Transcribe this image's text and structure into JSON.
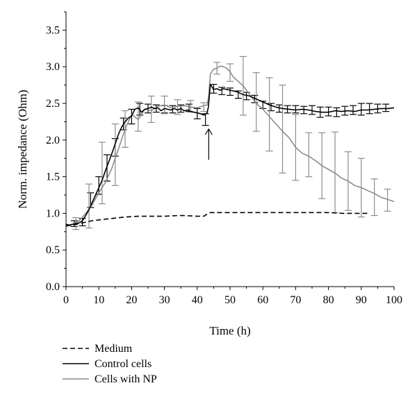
{
  "chart_data": {
    "type": "line",
    "xlabel": "Time (h)",
    "ylabel": "Norm. impedance (Ohm)",
    "xlim": [
      0,
      100
    ],
    "ylim": [
      0,
      3.75
    ],
    "x_ticks": [
      0,
      10,
      20,
      30,
      40,
      50,
      60,
      70,
      80,
      90,
      100
    ],
    "x_tick_labels": [
      "0",
      "10",
      "20",
      "30",
      "40",
      "50",
      "60",
      "70",
      "80",
      "90",
      "100"
    ],
    "y_ticks": [
      0,
      0.5,
      1.0,
      1.5,
      2.0,
      2.5,
      3.0,
      3.5
    ],
    "y_tick_labels": [
      "0.0",
      "0.5",
      "1.0",
      "1.5",
      "2.0",
      "2.5",
      "3.0",
      "3.5"
    ],
    "grid": false,
    "legend_position": "bottom-left",
    "annotation": {
      "type": "arrow",
      "x": 43.5,
      "y_from": 1.73,
      "y_to": 2.15
    },
    "series": [
      {
        "name": "Medium",
        "color": "#000000",
        "dash": "dashed",
        "x": [
          0,
          2,
          4,
          6,
          8,
          10,
          12,
          14,
          16,
          18,
          20,
          22,
          24,
          26,
          28,
          30,
          32,
          34,
          36,
          38,
          40,
          42,
          43,
          44,
          46,
          50,
          60,
          70,
          80,
          84,
          88,
          92
        ],
        "y": [
          0.83,
          0.84,
          0.86,
          0.88,
          0.9,
          0.91,
          0.92,
          0.93,
          0.94,
          0.95,
          0.955,
          0.96,
          0.96,
          0.96,
          0.96,
          0.96,
          0.965,
          0.97,
          0.97,
          0.965,
          0.96,
          0.96,
          0.99,
          1.01,
          1.01,
          1.01,
          1.01,
          1.01,
          1.01,
          1.0,
          1.0,
          1.0
        ]
      },
      {
        "name": "Control cells",
        "color": "#000000",
        "dash": "solid",
        "x": [
          0,
          1,
          2,
          3,
          4,
          5,
          6,
          7,
          8,
          9,
          10,
          11,
          12,
          13,
          14,
          15,
          16,
          17,
          18,
          19,
          20,
          21,
          22,
          23,
          24,
          25,
          26,
          27,
          28,
          29,
          30,
          31,
          32,
          33,
          34,
          35,
          36,
          37,
          38,
          39,
          40,
          41,
          42,
          43,
          43.4,
          44,
          45,
          46,
          47,
          48,
          50,
          52,
          54,
          56,
          58,
          60,
          62,
          64,
          66,
          68,
          70,
          72,
          74,
          76,
          78,
          80,
          82,
          84,
          86,
          88,
          90,
          92,
          94,
          96,
          98,
          100
        ],
        "y": [
          0.85,
          0.84,
          0.85,
          0.86,
          0.87,
          0.9,
          0.97,
          1.05,
          1.15,
          1.25,
          1.35,
          1.45,
          1.58,
          1.7,
          1.82,
          1.95,
          2.08,
          2.18,
          2.25,
          2.3,
          2.33,
          2.42,
          2.44,
          2.38,
          2.42,
          2.43,
          2.45,
          2.43,
          2.44,
          2.4,
          2.43,
          2.42,
          2.41,
          2.43,
          2.41,
          2.43,
          2.4,
          2.41,
          2.39,
          2.38,
          2.37,
          2.36,
          2.34,
          2.37,
          2.45,
          2.76,
          2.69,
          2.7,
          2.68,
          2.7,
          2.68,
          2.66,
          2.62,
          2.6,
          2.56,
          2.52,
          2.48,
          2.45,
          2.43,
          2.42,
          2.41,
          2.42,
          2.41,
          2.39,
          2.38,
          2.38,
          2.4,
          2.39,
          2.4,
          2.39,
          2.41,
          2.41,
          2.42,
          2.43,
          2.43,
          2.44
        ]
      },
      {
        "name": "Cells with NP",
        "color": "#8c8c8c",
        "dash": "solid",
        "x": [
          0,
          2,
          4,
          6,
          8,
          10,
          12,
          14,
          16,
          18,
          20,
          22,
          24,
          26,
          28,
          30,
          32,
          34,
          36,
          38,
          40,
          42,
          43,
          43.5,
          44,
          45,
          46,
          47,
          48,
          49,
          50,
          51,
          52,
          54,
          56,
          58,
          60,
          62,
          64,
          66,
          68,
          70,
          72,
          74,
          76,
          78,
          80,
          82,
          84,
          86,
          88,
          90,
          92,
          94,
          96,
          98,
          100
        ],
        "y": [
          0.82,
          0.85,
          0.9,
          1.0,
          1.12,
          1.28,
          1.42,
          1.62,
          1.88,
          2.15,
          2.35,
          2.28,
          2.42,
          2.4,
          2.46,
          2.48,
          2.44,
          2.46,
          2.47,
          2.45,
          2.44,
          2.47,
          2.48,
          2.6,
          2.9,
          2.97,
          2.98,
          3.01,
          3.0,
          2.98,
          2.93,
          2.86,
          2.82,
          2.74,
          2.62,
          2.5,
          2.42,
          2.32,
          2.22,
          2.12,
          2.03,
          1.9,
          1.82,
          1.78,
          1.72,
          1.65,
          1.6,
          1.55,
          1.48,
          1.44,
          1.38,
          1.35,
          1.31,
          1.27,
          1.22,
          1.19,
          1.16
        ]
      }
    ],
    "error_bars": [
      {
        "series": "Control cells",
        "color": "#000000",
        "x": [
          2.5,
          5,
          7.5,
          10,
          12.5,
          15,
          17.5,
          20,
          22.5,
          25,
          27.5,
          30,
          32.5,
          35,
          37.5,
          40,
          42.5,
          45,
          47.5,
          50,
          52.5,
          55,
          57.5,
          60,
          62.5,
          65,
          67.5,
          70,
          72.5,
          75,
          77.5,
          80,
          82.5,
          85,
          87.5,
          90,
          92.5,
          95,
          97.5
        ],
        "y": [
          0.86,
          0.88,
          1.18,
          1.38,
          1.62,
          1.9,
          2.22,
          2.32,
          2.42,
          2.43,
          2.43,
          2.42,
          2.42,
          2.43,
          2.44,
          2.36,
          2.28,
          2.7,
          2.67,
          2.66,
          2.62,
          2.6,
          2.56,
          2.48,
          2.45,
          2.43,
          2.42,
          2.42,
          2.41,
          2.41,
          2.38,
          2.39,
          2.38,
          2.4,
          2.41,
          2.42,
          2.43,
          2.43,
          2.44
        ],
        "err": [
          0.04,
          0.05,
          0.1,
          0.12,
          0.18,
          0.12,
          0.08,
          0.1,
          0.08,
          0.06,
          0.05,
          0.05,
          0.05,
          0.05,
          0.05,
          0.07,
          0.08,
          0.06,
          0.05,
          0.05,
          0.05,
          0.05,
          0.05,
          0.05,
          0.05,
          0.05,
          0.05,
          0.05,
          0.05,
          0.06,
          0.07,
          0.06,
          0.06,
          0.06,
          0.06,
          0.08,
          0.07,
          0.06,
          0.05
        ]
      },
      {
        "series": "Cells with NP",
        "color": "#8c8c8c",
        "x": [
          3,
          7,
          11,
          15,
          18,
          22,
          26,
          30,
          34,
          38,
          42,
          46,
          50,
          54,
          58,
          62,
          66,
          70,
          74,
          78,
          82,
          86,
          90,
          94,
          98
        ],
        "y": [
          0.86,
          1.1,
          1.55,
          1.8,
          2.15,
          2.32,
          2.42,
          2.48,
          2.45,
          2.46,
          2.45,
          2.98,
          2.92,
          2.74,
          2.52,
          2.35,
          2.15,
          1.9,
          1.8,
          1.65,
          1.56,
          1.44,
          1.35,
          1.22,
          1.18
        ],
        "err": [
          0.08,
          0.3,
          0.42,
          0.42,
          0.25,
          0.2,
          0.18,
          0.12,
          0.1,
          0.08,
          0.06,
          0.08,
          0.12,
          0.4,
          0.4,
          0.5,
          0.6,
          0.45,
          0.3,
          0.45,
          0.55,
          0.4,
          0.4,
          0.25,
          0.15
        ]
      }
    ]
  }
}
